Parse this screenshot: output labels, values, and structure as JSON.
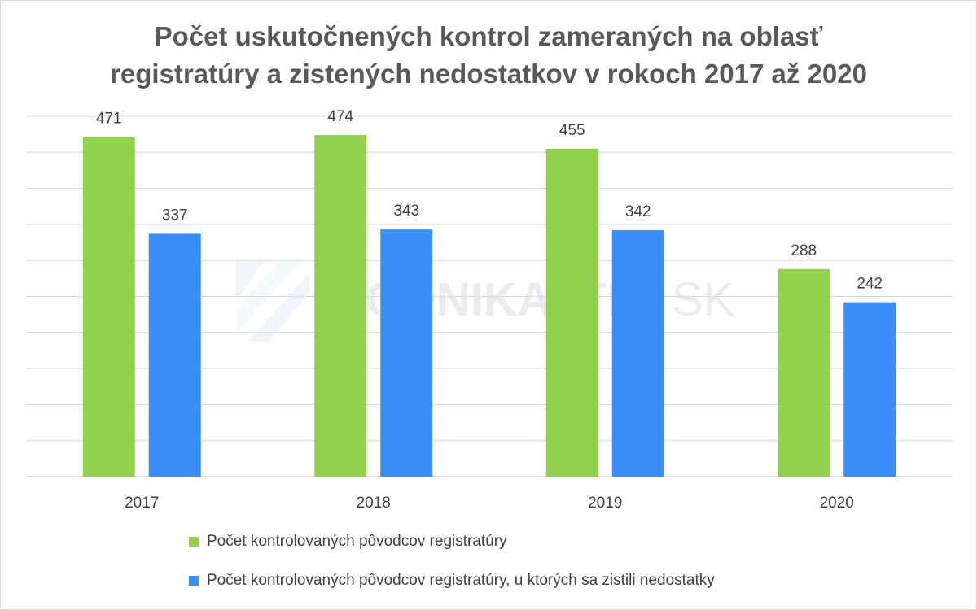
{
  "chart_data": {
    "type": "bar",
    "title_lines": [
      "Počet uskutočnených kontrol zameraných na oblasť",
      "registratúry a zistených nedostatkov v rokoch 2017 až 2020"
    ],
    "categories": [
      "2017",
      "2018",
      "2019",
      "2020"
    ],
    "series": [
      {
        "name": "Počet kontrolovaných pôvodcov registratúry",
        "values": [
          471,
          474,
          455,
          288
        ],
        "color": "#92d050"
      },
      {
        "name": "Počet kontrolovaných pôvodcov registratúry, u ktorých sa zistili nedostatky",
        "values": [
          337,
          343,
          342,
          242
        ],
        "color": "#3a8ef6"
      }
    ],
    "ylim": [
      0,
      500
    ],
    "grid": true,
    "legend_position": "bottom",
    "watermark": {
      "main": "PODNIKAJTE",
      "suffix": "SK",
      "color": "#9aa0a6"
    }
  }
}
